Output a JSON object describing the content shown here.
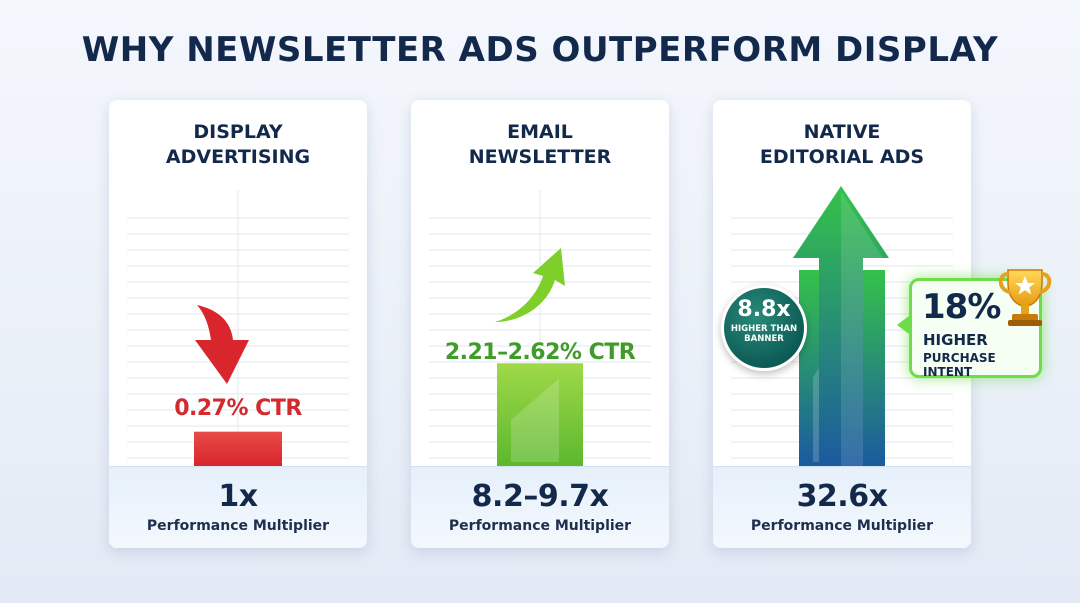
{
  "title": "WHY NEWSLETTER ADS OUTPERFORM DISPLAY",
  "chart_data": {
    "type": "bar",
    "categories": [
      "DISPLAY\nADVERTISING",
      "EMAIL\nNEWSLETTER",
      "NATIVE\nEDITORIAL ADS"
    ],
    "series": [
      {
        "values": [
          1,
          8.95,
          32.6
        ]
      }
    ],
    "value_labels": [
      "1x",
      "8.2–9.7x",
      "32.6x"
    ],
    "value_caption": "Performance Multiplier",
    "ctr_labels": [
      "0.27% CTR",
      "2.21–2.62% CTR",
      ""
    ],
    "ctr_values": [
      0.27,
      2.415,
      null
    ],
    "arrow_directions": [
      "down",
      "up",
      "up"
    ],
    "grid": true
  },
  "callouts": {
    "banner": {
      "value": "8.8x",
      "text": "HIGHER THAN\nBANNER"
    },
    "intent": {
      "value": "18%",
      "line1": "HIGHER",
      "line2": "PURCHASE INTENT",
      "icon": "trophy-icon"
    }
  },
  "colors": {
    "title": "#13294b",
    "display": "#d8262c",
    "newsletter": "#5cb82e",
    "native_top": "#2fb84a",
    "native_bottom": "#1b5aa0"
  }
}
